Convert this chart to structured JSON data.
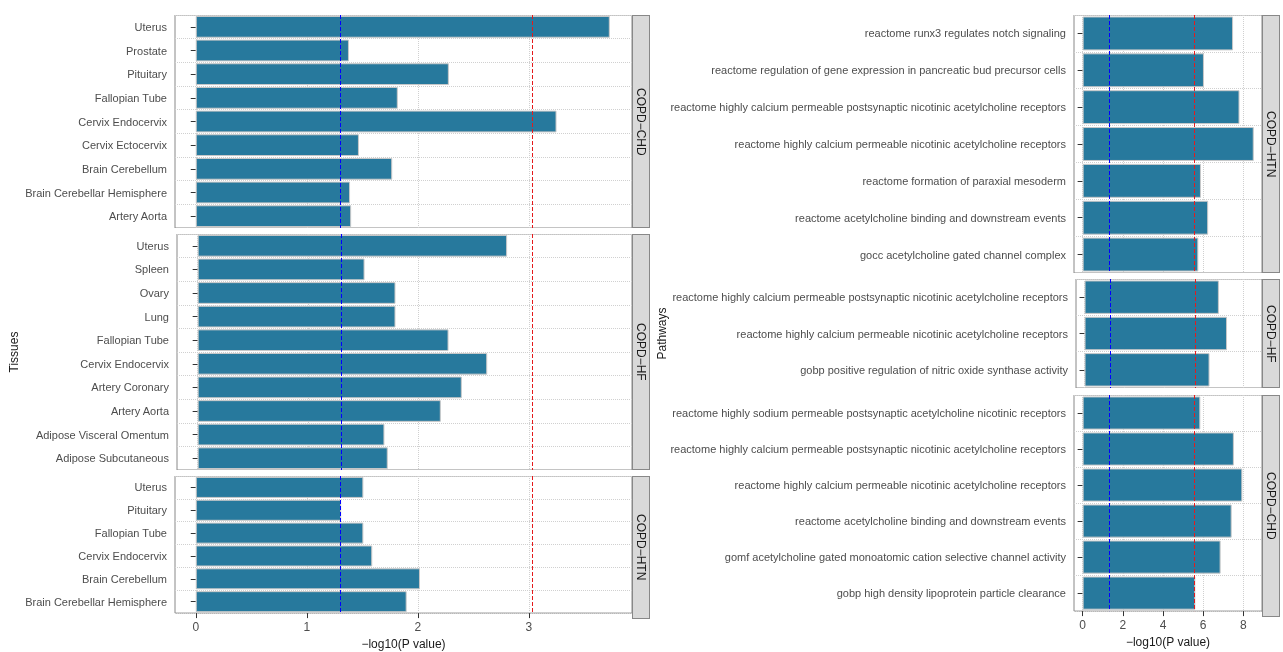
{
  "chart_data": [
    {
      "type": "bar",
      "orientation": "horizontal",
      "title": "COPD−CHD",
      "tick_labels": "y",
      "color": "#27799d",
      "grid": true,
      "xlim": [
        -0.187,
        3.93
      ],
      "xticks": [
        0,
        1,
        2,
        3
      ],
      "categories": [
        "Uterus",
        "Prostate",
        "Pituitary",
        "Fallopian Tube",
        "Cervix Endocervix",
        "Cervix Ectocervix",
        "Brain Cerebellum",
        "Brain Cerebellar Hemisphere",
        "Artery Aorta"
      ],
      "values": [
        3.73,
        1.38,
        2.28,
        1.82,
        3.25,
        1.47,
        1.77,
        1.39,
        1.4
      ],
      "ref_lines": [
        {
          "axis": "x",
          "value": 1.3,
          "color": "#0000ff",
          "line_style": "dashed"
        },
        {
          "axis": "x",
          "value": 3.03,
          "color": "#e41a1c",
          "line_style": "dashed"
        }
      ]
    },
    {
      "type": "bar",
      "orientation": "horizontal",
      "title": "COPD−HF",
      "ylabel": "Tissues",
      "tick_labels": "y",
      "color": "#27799d",
      "grid": true,
      "xlim": [
        -0.187,
        3.93
      ],
      "xticks": [
        0,
        1,
        2,
        3
      ],
      "categories": [
        "Uterus",
        "Spleen",
        "Ovary",
        "Lung",
        "Fallopian Tube",
        "Cervix Endocervix",
        "Artery Coronary",
        "Artery Aorta",
        "Adipose Visceral Omentum",
        "Adipose Subcutaneous"
      ],
      "values": [
        2.8,
        1.51,
        1.79,
        1.79,
        2.27,
        2.62,
        2.39,
        2.2,
        1.69,
        1.72
      ],
      "ref_lines": [
        {
          "axis": "x",
          "value": 1.3,
          "color": "#0000ff",
          "line_style": "dashed"
        },
        {
          "axis": "x",
          "value": 3.03,
          "color": "#e41a1c",
          "line_style": "dashed"
        }
      ]
    },
    {
      "type": "bar",
      "orientation": "horizontal",
      "title": "COPD−HTN",
      "xlabel": "−log10(P value)",
      "color": "#27799d",
      "grid": true,
      "xlim": [
        -0.187,
        3.93
      ],
      "xticks": [
        0,
        1,
        2,
        3
      ],
      "categories": [
        "Uterus",
        "Pituitary",
        "Fallopian Tube",
        "Cervix Endocervix",
        "Brain Cerebellum",
        "Brain Cerebellar Hemisphere"
      ],
      "values": [
        1.51,
        1.31,
        1.51,
        1.59,
        2.02,
        1.9
      ],
      "ref_lines": [
        {
          "axis": "x",
          "value": 1.3,
          "color": "#0000ff",
          "line_style": "dashed"
        },
        {
          "axis": "x",
          "value": 3.03,
          "color": "#e41a1c",
          "line_style": "dashed"
        }
      ]
    },
    {
      "type": "bar",
      "orientation": "horizontal",
      "title": "COPD−HTN",
      "tick_labels": "y",
      "color": "#27799d",
      "grid": true,
      "xlim": [
        -0.43,
        8.93
      ],
      "xticks": [
        0,
        2,
        4,
        6,
        8
      ],
      "categories": [
        "reactome runx3 regulates notch signaling",
        "reactome regulation of gene expression in pancreatic bud precursor cells",
        "reactome highly calcium permeable postsynaptic nicotinic acetylcholine receptors",
        "reactome highly calcium permeable nicotinic acetylcholine receptors",
        "reactome formation of paraxial mesoderm",
        "reactome acetylcholine binding and downstream events",
        "gocc acetylcholine gated channel complex"
      ],
      "values": [
        7.49,
        6.04,
        7.81,
        8.52,
        5.89,
        6.25,
        5.76
      ],
      "ref_lines": [
        {
          "axis": "x",
          "value": 1.31,
          "color": "#0000ff",
          "line_style": "dashed"
        },
        {
          "axis": "x",
          "value": 5.57,
          "color": "#e41a1c",
          "line_style": "dashed"
        }
      ]
    },
    {
      "type": "bar",
      "orientation": "horizontal",
      "title": "COPD−HF",
      "ylabel": "Pathways",
      "tick_labels": "y",
      "color": "#27799d",
      "grid": true,
      "xlim": [
        -0.43,
        8.93
      ],
      "xticks": [
        0,
        2,
        4,
        6,
        8
      ],
      "categories": [
        "reactome highly calcium permeable postsynaptic nicotinic acetylcholine receptors",
        "reactome highly calcium permeable nicotinic acetylcholine receptors",
        "gobp positive regulation of nitric oxide synthase activity"
      ],
      "values": [
        6.76,
        7.17,
        6.29
      ],
      "ref_lines": [
        {
          "axis": "x",
          "value": 1.31,
          "color": "#0000ff",
          "line_style": "dashed"
        },
        {
          "axis": "x",
          "value": 5.57,
          "color": "#e41a1c",
          "line_style": "dashed"
        }
      ]
    },
    {
      "type": "bar",
      "orientation": "horizontal",
      "title": "COPD−CHD",
      "xlabel": "−log10(P value)",
      "color": "#27799d",
      "grid": true,
      "xlim": [
        -0.43,
        8.93
      ],
      "xticks": [
        0,
        2,
        4,
        6,
        8
      ],
      "categories": [
        "reactome highly sodium permeable postsynaptic acetylcholine nicotinic receptors",
        "reactome highly calcium permeable postsynaptic nicotinic acetylcholine receptors",
        "reactome highly calcium permeable nicotinic acetylcholine receptors",
        "reactome acetylcholine binding and downstream events",
        "gomf acetylcholine gated monoatomic cation selective channel activity",
        "gobp high density lipoprotein particle clearance"
      ],
      "values": [
        5.86,
        7.53,
        7.95,
        7.42,
        6.87,
        5.61
      ],
      "ref_lines": [
        {
          "axis": "x",
          "value": 1.31,
          "color": "#0000ff",
          "line_style": "dashed"
        },
        {
          "axis": "x",
          "value": 5.57,
          "color": "#e41a1c",
          "line_style": "dashed"
        }
      ]
    }
  ]
}
